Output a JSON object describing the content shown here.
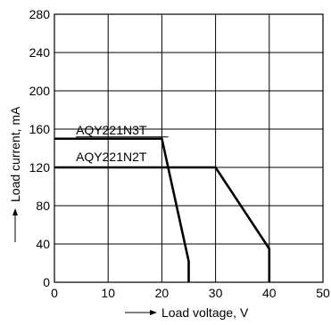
{
  "chart_data": {
    "type": "line",
    "xlabel": "Load voltage, V",
    "ylabel": "Load current, mA",
    "xlim": [
      0,
      50
    ],
    "ylim": [
      0,
      280
    ],
    "xticks": [
      "0",
      "10",
      "20",
      "30",
      "40",
      "50"
    ],
    "yticks": [
      "0",
      "40",
      "80",
      "120",
      "160",
      "200",
      "240",
      "280"
    ],
    "grid": true,
    "series": [
      {
        "name": "AQY221N3T",
        "x": [
          0,
          20,
          25,
          25
        ],
        "y": [
          150,
          150,
          22,
          0
        ]
      },
      {
        "name": "AQY221N2T",
        "x": [
          0,
          30,
          40,
          40
        ],
        "y": [
          120,
          120,
          35,
          0
        ]
      }
    ]
  }
}
